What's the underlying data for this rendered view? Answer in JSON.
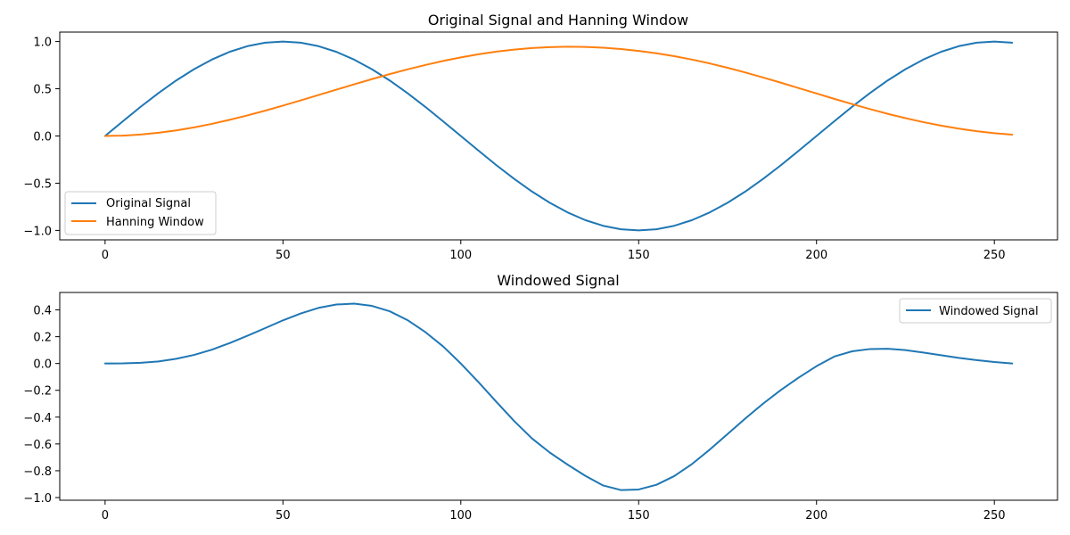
{
  "colors": {
    "blue": "#1f77b4",
    "orange": "#ff7f0e"
  },
  "chart_data": [
    {
      "type": "line",
      "title": "Original Signal and Hanning Window",
      "xlabel": "",
      "ylabel": "",
      "xlim": [
        -12.75,
        267.75
      ],
      "ylim": [
        -1.1,
        1.1
      ],
      "x_ticks": [
        0,
        50,
        100,
        150,
        200,
        250
      ],
      "x_tick_labels": [
        "0",
        "50",
        "100",
        "150",
        "200",
        "250"
      ],
      "y_ticks": [
        1.0,
        0.5,
        0.0,
        -0.5,
        -1.0
      ],
      "y_tick_labels": [
        "1.0",
        "0.5",
        "0.0",
        "−0.5",
        "−1.0"
      ],
      "grid": false,
      "legend_position": "lower-left",
      "series": [
        {
          "name": "Original Signal",
          "color": "#1f77b4",
          "x": [
            0,
            5,
            10,
            15,
            20,
            25,
            30,
            35,
            40,
            45,
            50,
            55,
            60,
            65,
            70,
            75,
            80,
            85,
            90,
            95,
            100,
            105,
            110,
            115,
            120,
            125,
            130,
            135,
            140,
            145,
            150,
            155,
            160,
            165,
            170,
            175,
            180,
            185,
            190,
            195,
            200,
            205,
            210,
            215,
            220,
            225,
            230,
            235,
            240,
            245,
            250,
            255
          ],
          "values": [
            0.0,
            0.156,
            0.309,
            0.454,
            0.588,
            0.707,
            0.809,
            0.891,
            0.951,
            0.988,
            1.0,
            0.988,
            0.951,
            0.891,
            0.809,
            0.707,
            0.588,
            0.454,
            0.309,
            0.156,
            0.0,
            -0.156,
            -0.309,
            -0.454,
            -0.588,
            -0.707,
            -0.809,
            -0.891,
            -0.951,
            -0.988,
            -1.0,
            -0.988,
            -0.951,
            -0.891,
            -0.809,
            -0.707,
            -0.588,
            -0.454,
            -0.309,
            -0.156,
            0.0,
            0.156,
            0.309,
            0.454,
            0.588,
            0.707,
            0.809,
            0.891,
            0.951,
            0.988,
            1.0,
            0.988
          ]
        },
        {
          "name": "Hanning Window",
          "color": "#ff7f0e",
          "x": [
            0,
            5,
            10,
            15,
            20,
            25,
            30,
            35,
            40,
            45,
            50,
            55,
            60,
            65,
            70,
            75,
            80,
            85,
            90,
            95,
            100,
            105,
            110,
            115,
            120,
            125,
            130,
            135,
            140,
            145,
            150,
            155,
            160,
            165,
            170,
            175,
            180,
            185,
            190,
            195,
            200,
            205,
            210,
            215,
            220,
            225,
            230,
            235,
            240,
            245,
            250,
            255
          ],
          "values": [
            0.0,
            0.004,
            0.015,
            0.034,
            0.059,
            0.091,
            0.128,
            0.171,
            0.218,
            0.268,
            0.322,
            0.377,
            0.434,
            0.49,
            0.547,
            0.602,
            0.655,
            0.705,
            0.751,
            0.794,
            0.832,
            0.865,
            0.893,
            0.915,
            0.931,
            0.941,
            0.945,
            0.943,
            0.935,
            0.921,
            0.901,
            0.876,
            0.845,
            0.809,
            0.768,
            0.722,
            0.672,
            0.619,
            0.564,
            0.507,
            0.45,
            0.393,
            0.338,
            0.285,
            0.235,
            0.189,
            0.147,
            0.11,
            0.078,
            0.051,
            0.03,
            0.014
          ],
          "note": ""
        }
      ]
    },
    {
      "type": "line",
      "title": "Windowed Signal",
      "xlabel": "",
      "ylabel": "",
      "xlim": [
        -12.75,
        267.75
      ],
      "ylim": [
        -1.02,
        0.53
      ],
      "x_ticks": [
        0,
        50,
        100,
        150,
        200,
        250
      ],
      "x_tick_labels": [
        "0",
        "50",
        "100",
        "150",
        "200",
        "250"
      ],
      "y_ticks": [
        0.4,
        0.2,
        0.0,
        -0.2,
        -0.4,
        -0.6,
        -0.8,
        -1.0
      ],
      "y_tick_labels": [
        "0.4",
        "0.2",
        "0.0",
        "−0.2",
        "−0.4",
        "−0.6",
        "−0.8",
        "−1.0"
      ],
      "grid": false,
      "legend_position": "upper-right",
      "series": [
        {
          "name": "Windowed Signal",
          "color": "#1f77b4",
          "x": [
            0,
            5,
            10,
            15,
            20,
            25,
            30,
            35,
            40,
            45,
            50,
            55,
            60,
            65,
            70,
            75,
            80,
            85,
            90,
            95,
            100,
            105,
            110,
            115,
            120,
            125,
            130,
            135,
            140,
            145,
            150,
            155,
            160,
            165,
            170,
            175,
            180,
            185,
            190,
            195,
            200,
            205,
            210,
            215,
            220,
            225,
            230,
            235,
            240,
            245,
            250,
            255
          ],
          "values": [
            0.0,
            0.001,
            0.005,
            0.015,
            0.035,
            0.064,
            0.103,
            0.152,
            0.207,
            0.264,
            0.322,
            0.373,
            0.415,
            0.44,
            0.447,
            0.43,
            0.39,
            0.324,
            0.235,
            0.128,
            0.0,
            -0.14,
            -0.286,
            -0.429,
            -0.559,
            -0.664,
            -0.754,
            -0.838,
            -0.91,
            -0.944,
            -0.94,
            -0.905,
            -0.84,
            -0.75,
            -0.642,
            -0.526,
            -0.41,
            -0.299,
            -0.197,
            -0.105,
            -0.02,
            0.052,
            0.091,
            0.108,
            0.11,
            0.1,
            0.082,
            0.062,
            0.042,
            0.025,
            0.011,
            0.0
          ]
        }
      ]
    }
  ]
}
